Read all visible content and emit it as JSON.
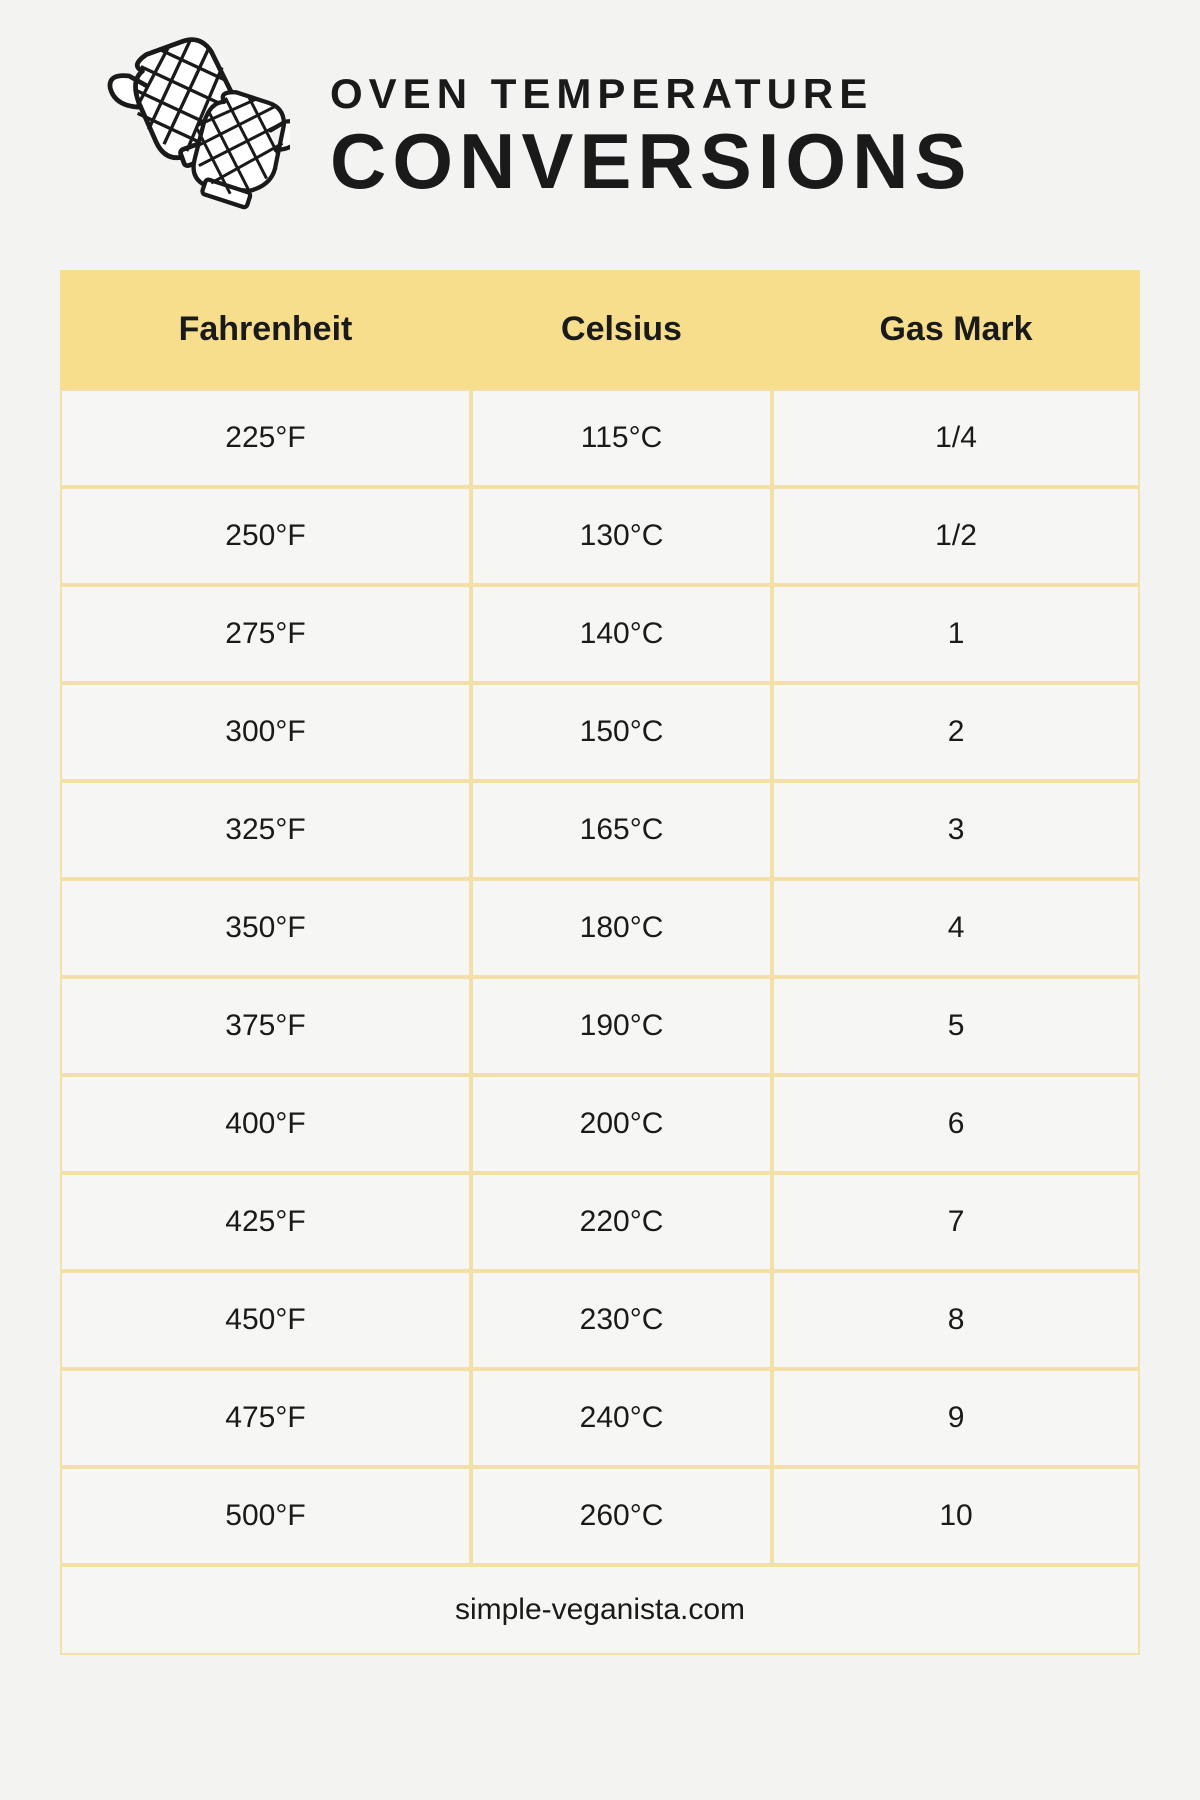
{
  "header": {
    "subtitle": "OVEN TEMPERATURE",
    "title": "CONVERSIONS",
    "icon_name": "oven-mitts-icon"
  },
  "table": {
    "type": "table",
    "columns": [
      "Fahrenheit",
      "Celsius",
      "Gas Mark"
    ],
    "rows": [
      [
        "225°F",
        "115°C",
        "1/4"
      ],
      [
        "250°F",
        "130°C",
        "1/2"
      ],
      [
        "275°F",
        "140°C",
        "1"
      ],
      [
        "300°F",
        "150°C",
        "2"
      ],
      [
        "325°F",
        "165°C",
        "3"
      ],
      [
        "350°F",
        "180°C",
        "4"
      ],
      [
        "375°F",
        "190°C",
        "5"
      ],
      [
        "400°F",
        "200°C",
        "6"
      ],
      [
        "425°F",
        "220°C",
        "7"
      ],
      [
        "450°F",
        "230°C",
        "8"
      ],
      [
        "475°F",
        "240°C",
        "9"
      ],
      [
        "500°F",
        "260°C",
        "10"
      ]
    ],
    "footer": "simple-veganista.com",
    "header_bg_color": "#f6de8d",
    "cell_bg_color": "#f6f6f4",
    "border_color": "#f3e0a8",
    "header_fontsize": 34,
    "cell_fontsize": 30,
    "header_fontweight": 800,
    "cell_fontweight": 500
  },
  "page": {
    "background_color": "#f3f3f1",
    "text_color": "#1a1a1a",
    "subtitle_fontsize": 42,
    "subtitle_letterspacing": 6,
    "title_fontsize": 78,
    "title_letterspacing": 6
  }
}
